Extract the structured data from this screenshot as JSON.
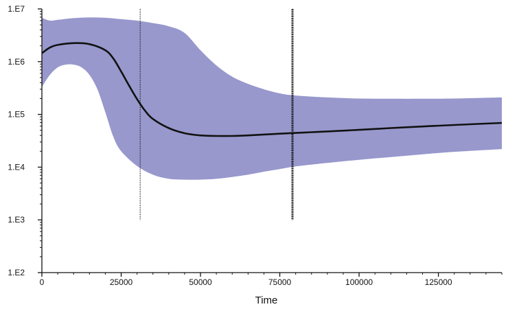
{
  "chart_data": {
    "type": "line",
    "title": "",
    "xlabel": "Time",
    "ylabel": "",
    "xlim": [
      0,
      145000
    ],
    "ylim": [
      100,
      10000000
    ],
    "y_scale": "log",
    "grid": false,
    "legend": "none",
    "x_ticks": [
      {
        "value": 0,
        "label": "0"
      },
      {
        "value": 25000,
        "label": "25000"
      },
      {
        "value": 50000,
        "label": "50000"
      },
      {
        "value": 75000,
        "label": "75000"
      },
      {
        "value": 100000,
        "label": "100000"
      },
      {
        "value": 125000,
        "label": "125000"
      }
    ],
    "y_ticks": [
      {
        "value": 100,
        "label": "1.E2"
      },
      {
        "value": 1000,
        "label": "1.E3"
      },
      {
        "value": 10000,
        "label": "1.E4"
      },
      {
        "value": 100000,
        "label": "1.E5"
      },
      {
        "value": 1000000,
        "label": "1.E6"
      },
      {
        "value": 10000000,
        "label": "1.E7"
      }
    ],
    "series": [
      {
        "role": "median",
        "color": "#111111",
        "x": [
          0,
          2500,
          5000,
          10000,
          15000,
          20000,
          22500,
          25000,
          27500,
          30000,
          32500,
          35000,
          40000,
          45000,
          50000,
          55000,
          60000,
          65000,
          70000,
          75000,
          80000,
          85000,
          90000,
          100000,
          110000,
          120000,
          130000,
          145000
        ],
        "y": [
          1450000,
          1850000,
          2080000,
          2250000,
          2150000,
          1650000,
          1150000,
          650000,
          350000,
          195000,
          118000,
          82000,
          55000,
          44000,
          40000,
          39000,
          39000,
          40000,
          41500,
          43000,
          44500,
          46000,
          47500,
          51000,
          55000,
          59000,
          63000,
          69000
        ]
      },
      {
        "role": "upper",
        "x": [
          0,
          2500,
          5000,
          10000,
          15000,
          20000,
          25000,
          30000,
          35000,
          40000,
          45000,
          50000,
          55000,
          60000,
          65000,
          70000,
          75000,
          80000,
          90000,
          100000,
          110000,
          120000,
          130000,
          145000
        ],
        "y": [
          6800000,
          6000000,
          6200000,
          6700000,
          6900000,
          6800000,
          6400000,
          6000000,
          5400000,
          4700000,
          3500000,
          1650000,
          850000,
          520000,
          380000,
          300000,
          250000,
          228000,
          210000,
          200000,
          198000,
          198000,
          200000,
          210000
        ]
      },
      {
        "role": "lower",
        "x": [
          0,
          2500,
          5000,
          7500,
          10000,
          12500,
          15000,
          17500,
          20000,
          22500,
          25000,
          30000,
          35000,
          40000,
          45000,
          50000,
          55000,
          60000,
          65000,
          70000,
          75000,
          80000,
          90000,
          100000,
          110000,
          120000,
          130000,
          145000
        ],
        "y": [
          330000,
          560000,
          780000,
          880000,
          880000,
          780000,
          560000,
          300000,
          110000,
          38000,
          20000,
          10500,
          7200,
          6000,
          5800,
          5800,
          6000,
          6500,
          7200,
          8200,
          9200,
          10300,
          12000,
          13800,
          15500,
          17500,
          19500,
          22000
        ]
      }
    ],
    "band_color": "#9898cd",
    "vertical_markers": [
      {
        "x": 31000,
        "y_from": 1000,
        "y_to": 10000000,
        "style": "thin-dotted"
      },
      {
        "x": 79000,
        "y_from": 1000,
        "y_to": 10000000,
        "style": "thick-dotted"
      }
    ]
  }
}
